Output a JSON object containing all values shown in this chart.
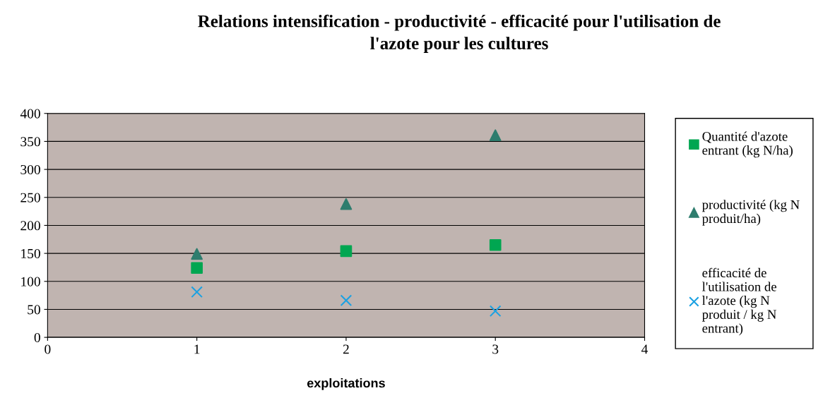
{
  "chart_data": {
    "type": "scatter",
    "title": "Relations intensification - productivité - efficacité pour l'utilisation de l'azote pour les cultures",
    "xlabel": "exploitations",
    "x": [
      1,
      2,
      3
    ],
    "series": [
      {
        "name": "Quantité d'azote entrant (kg N/ha)",
        "color": "#00a651",
        "marker": "square",
        "values": [
          124,
          154,
          165
        ]
      },
      {
        "name": "productivité (kg N produit/ha)",
        "color": "#2e7d6e",
        "marker": "triangle",
        "values": [
          149,
          238,
          361
        ]
      },
      {
        "name": "efficacité de l'utilisation de l'azote (kg N produit / kg N entrant)",
        "color": "#1ba1e2",
        "marker": "cross",
        "values": [
          81,
          66,
          47
        ]
      }
    ],
    "xlim": [
      0,
      4
    ],
    "xticks": [
      0,
      1,
      2,
      3,
      4
    ],
    "ylim": [
      0,
      400
    ],
    "yticks": [
      0,
      50,
      100,
      150,
      200,
      250,
      300,
      350,
      400
    ],
    "grid": "y",
    "legend": "right"
  }
}
